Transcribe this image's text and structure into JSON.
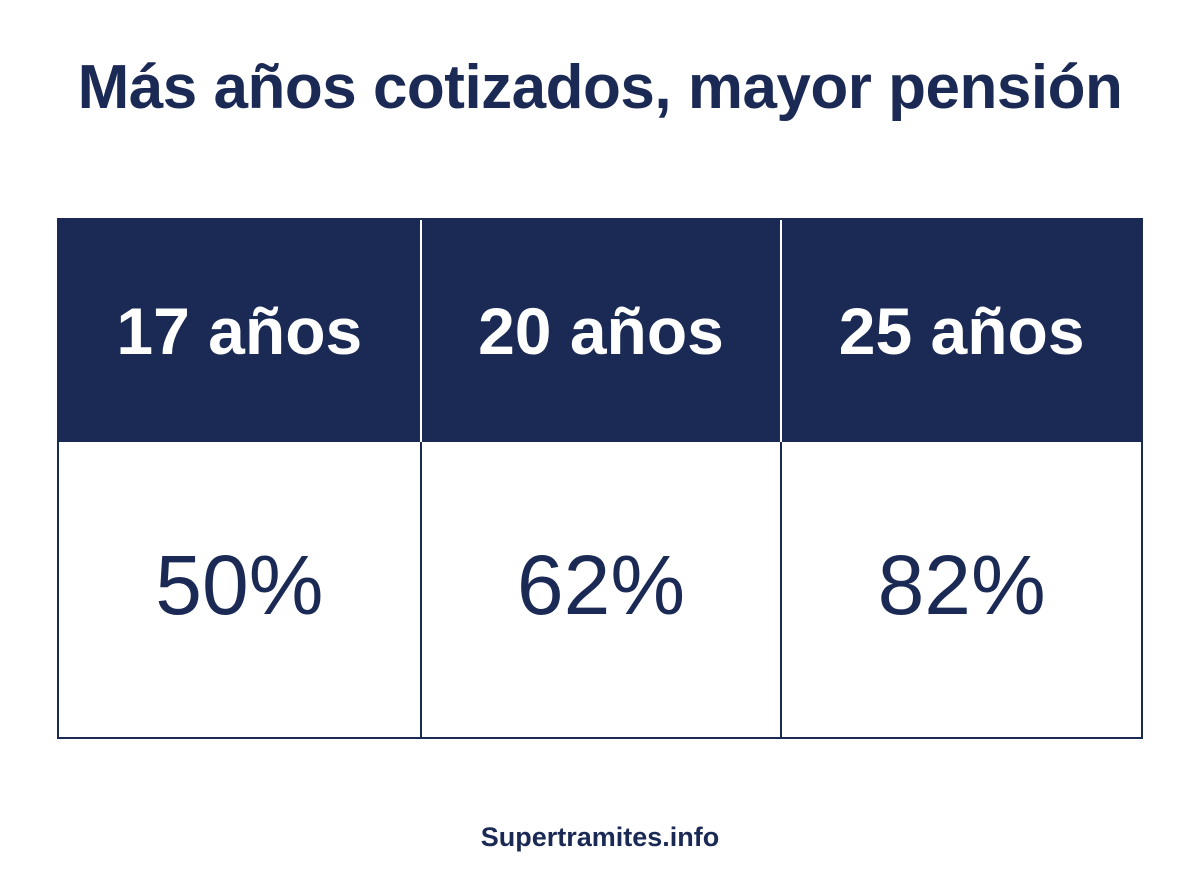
{
  "title": "Más años cotizados, mayor pensión",
  "footer": "Supertramites.info",
  "colors": {
    "header_bg": "#1a2a55",
    "text": "#1b2a55",
    "background": "#ffffff"
  },
  "chart_data": {
    "type": "table",
    "title": "Más años cotizados, mayor pensión",
    "columns": [
      "17 años",
      "20 años",
      "25 años"
    ],
    "rows": [
      [
        "50%",
        "62%",
        "82%"
      ]
    ]
  }
}
